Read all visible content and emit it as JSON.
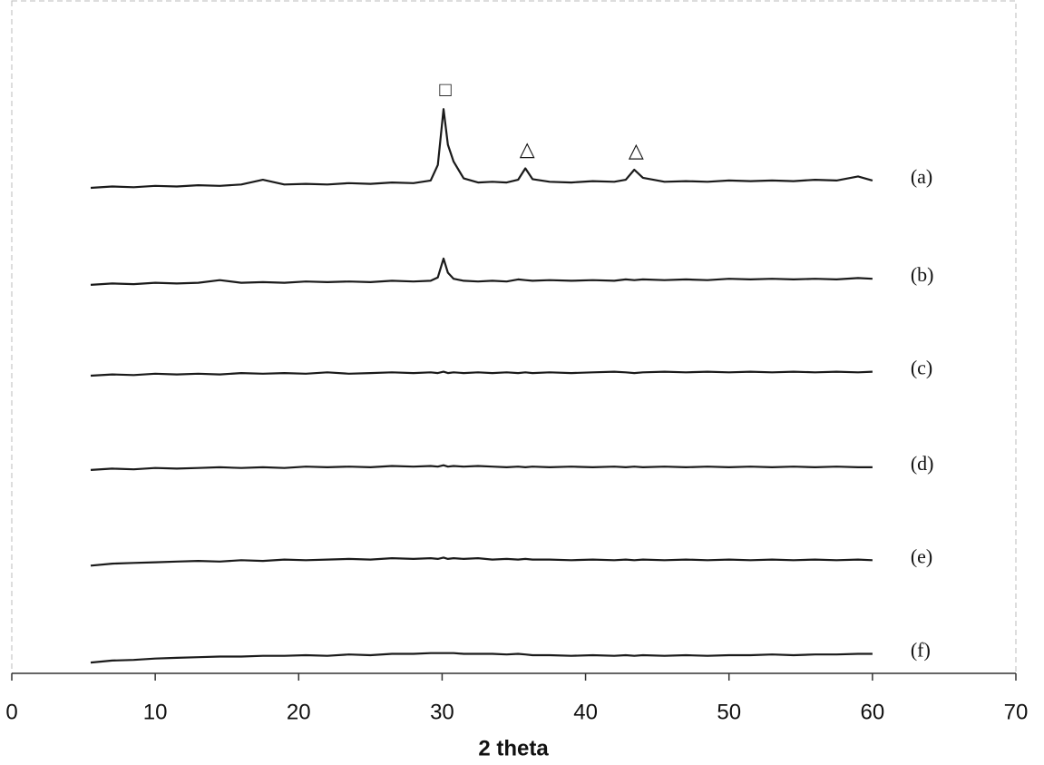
{
  "chart_data": {
    "type": "line",
    "x_label": "2 theta",
    "xlim": [
      0,
      70
    ],
    "xticks": [
      0,
      10,
      20,
      30,
      40,
      50,
      60,
      70
    ],
    "ylim": [
      0,
      100
    ],
    "x": [
      5.5,
      7,
      8.5,
      10,
      11.5,
      13,
      14.5,
      16,
      17.5,
      19,
      20.5,
      22,
      23.5,
      25,
      26.5,
      28,
      29.2,
      29.7,
      30.1,
      30.4,
      30.8,
      31.5,
      32.5,
      33.5,
      34.5,
      35.3,
      35.8,
      36.3,
      37.5,
      39,
      40.5,
      42,
      42.8,
      43.4,
      44,
      45.5,
      47,
      48.5,
      50,
      51.5,
      53,
      54.5,
      56,
      57.5,
      59,
      60
    ],
    "series": [
      {
        "name": "(a)",
        "color": "#1a1a1a",
        "values": [
          72.1,
          72.3,
          72.2,
          72.4,
          72.3,
          72.5,
          72.4,
          72.6,
          73.3,
          72.6,
          72.7,
          72.6,
          72.8,
          72.7,
          72.9,
          72.8,
          73.2,
          75.5,
          83.8,
          78.5,
          76.0,
          73.5,
          72.9,
          73.0,
          72.9,
          73.3,
          75.0,
          73.4,
          73.0,
          72.9,
          73.1,
          73.0,
          73.3,
          74.8,
          73.6,
          73.0,
          73.1,
          73.0,
          73.2,
          73.1,
          73.2,
          73.1,
          73.3,
          73.2,
          73.8,
          73.2
        ],
        "annotations": [
          {
            "label": "□",
            "x": 30.1
          },
          {
            "label": "△",
            "x": 35.8
          },
          {
            "label": "△",
            "x": 43.4
          }
        ]
      },
      {
        "name": "(b)",
        "color": "#1a1a1a",
        "values": [
          57.7,
          57.9,
          57.8,
          58.0,
          57.9,
          58.0,
          58.4,
          58.0,
          58.1,
          58.0,
          58.2,
          58.1,
          58.2,
          58.1,
          58.3,
          58.2,
          58.3,
          58.8,
          61.6,
          59.5,
          58.6,
          58.3,
          58.2,
          58.3,
          58.2,
          58.5,
          58.4,
          58.3,
          58.4,
          58.3,
          58.4,
          58.3,
          58.5,
          58.4,
          58.5,
          58.4,
          58.5,
          58.4,
          58.6,
          58.5,
          58.6,
          58.5,
          58.6,
          58.5,
          58.7,
          58.6
        ]
      },
      {
        "name": "(c)",
        "color": "#1a1a1a",
        "values": [
          44.2,
          44.4,
          44.3,
          44.5,
          44.4,
          44.5,
          44.4,
          44.6,
          44.5,
          44.6,
          44.5,
          44.7,
          44.5,
          44.6,
          44.7,
          44.6,
          44.7,
          44.6,
          44.8,
          44.6,
          44.7,
          44.6,
          44.7,
          44.6,
          44.7,
          44.6,
          44.7,
          44.6,
          44.7,
          44.6,
          44.7,
          44.8,
          44.7,
          44.6,
          44.7,
          44.8,
          44.7,
          44.8,
          44.7,
          44.8,
          44.7,
          44.8,
          44.7,
          44.8,
          44.7,
          44.8
        ]
      },
      {
        "name": "(d)",
        "color": "#1a1a1a",
        "values": [
          30.2,
          30.4,
          30.3,
          30.5,
          30.4,
          30.5,
          30.6,
          30.5,
          30.6,
          30.5,
          30.7,
          30.6,
          30.7,
          30.6,
          30.8,
          30.7,
          30.8,
          30.7,
          30.9,
          30.7,
          30.8,
          30.7,
          30.8,
          30.7,
          30.6,
          30.7,
          30.6,
          30.7,
          30.6,
          30.7,
          30.6,
          30.7,
          30.6,
          30.7,
          30.6,
          30.7,
          30.6,
          30.7,
          30.6,
          30.7,
          30.6,
          30.7,
          30.6,
          30.7,
          30.6,
          30.6
        ]
      },
      {
        "name": "(e)",
        "color": "#1a1a1a",
        "values": [
          16.0,
          16.3,
          16.4,
          16.5,
          16.6,
          16.7,
          16.6,
          16.8,
          16.7,
          16.9,
          16.8,
          16.9,
          17.0,
          16.9,
          17.1,
          17.0,
          17.1,
          17.0,
          17.2,
          17.0,
          17.1,
          17.0,
          17.1,
          16.9,
          17.0,
          16.9,
          17.0,
          16.9,
          16.9,
          16.8,
          16.9,
          16.8,
          16.9,
          16.8,
          16.9,
          16.8,
          16.9,
          16.8,
          16.9,
          16.8,
          16.9,
          16.8,
          16.9,
          16.8,
          16.9,
          16.8
        ]
      },
      {
        "name": "(f)",
        "color": "#1a1a1a",
        "values": [
          1.6,
          1.9,
          2.0,
          2.2,
          2.3,
          2.4,
          2.5,
          2.5,
          2.6,
          2.6,
          2.7,
          2.6,
          2.8,
          2.7,
          2.9,
          2.9,
          3.0,
          3.0,
          3.0,
          3.0,
          3.0,
          2.9,
          2.9,
          2.9,
          2.8,
          2.9,
          2.8,
          2.7,
          2.7,
          2.6,
          2.7,
          2.6,
          2.7,
          2.6,
          2.7,
          2.6,
          2.7,
          2.6,
          2.7,
          2.7,
          2.8,
          2.7,
          2.8,
          2.8,
          2.9,
          2.9
        ]
      }
    ]
  }
}
